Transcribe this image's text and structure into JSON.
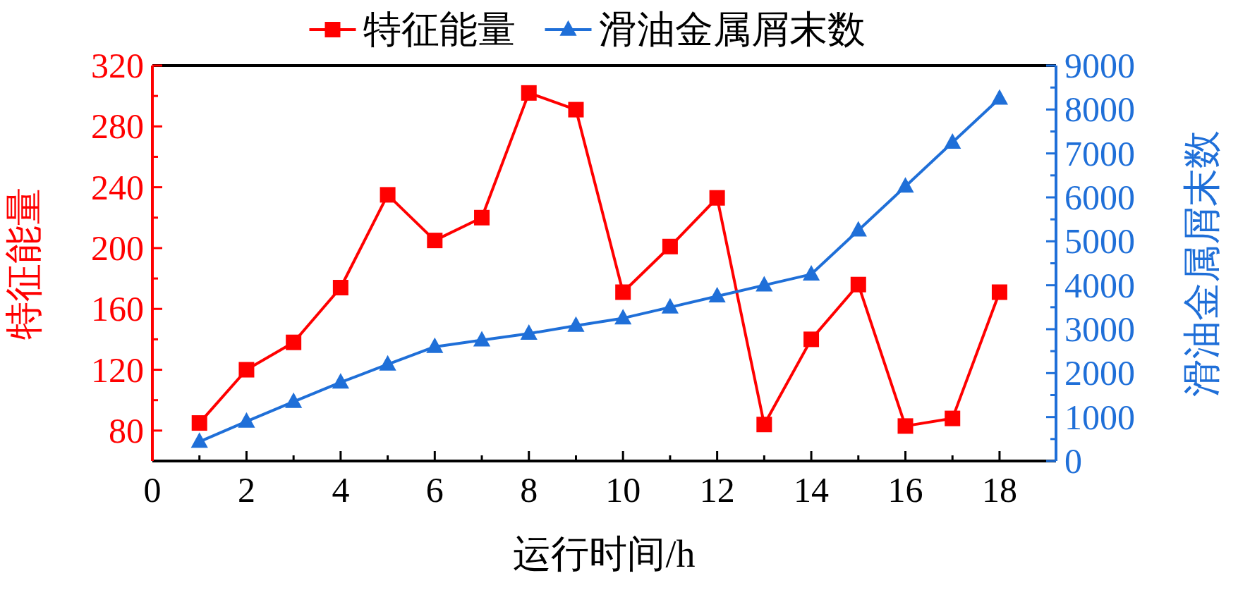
{
  "chart_data": {
    "type": "line",
    "xlabel": "运行时间/h",
    "ylabel": "特征能量",
    "y2label": "滑油金属屑末数",
    "x": [
      1,
      2,
      3,
      4,
      5,
      6,
      7,
      8,
      9,
      10,
      11,
      12,
      13,
      14,
      15,
      16,
      17,
      18
    ],
    "series": [
      {
        "name": "特征能量",
        "color": "#ff0000",
        "marker": "square",
        "values": [
          85,
          120,
          138,
          174,
          235,
          205,
          220,
          302,
          291,
          171,
          201,
          233,
          84,
          140,
          176,
          83,
          88,
          171
        ]
      },
      {
        "name": "滑油金属屑末数",
        "color": "#1f6fd8",
        "marker": "triangle",
        "axis": "y2",
        "values": [
          440,
          900,
          1350,
          1790,
          2200,
          2600,
          2750,
          2900,
          3080,
          3250,
          3500,
          3750,
          4000,
          4250,
          5250,
          6250,
          7250,
          8250
        ]
      }
    ],
    "xlim": [
      0,
      19.2
    ],
    "xticks": [
      0,
      2,
      4,
      6,
      8,
      10,
      12,
      14,
      16,
      18
    ],
    "ylim": [
      60,
      320
    ],
    "yticks": [
      80,
      120,
      160,
      200,
      240,
      280,
      320
    ],
    "y2lim": [
      0,
      9000
    ],
    "y2ticks": [
      0,
      1000,
      2000,
      3000,
      4000,
      5000,
      6000,
      7000,
      8000,
      9000
    ],
    "legend": "top",
    "line_style": "solid",
    "grid": false
  }
}
